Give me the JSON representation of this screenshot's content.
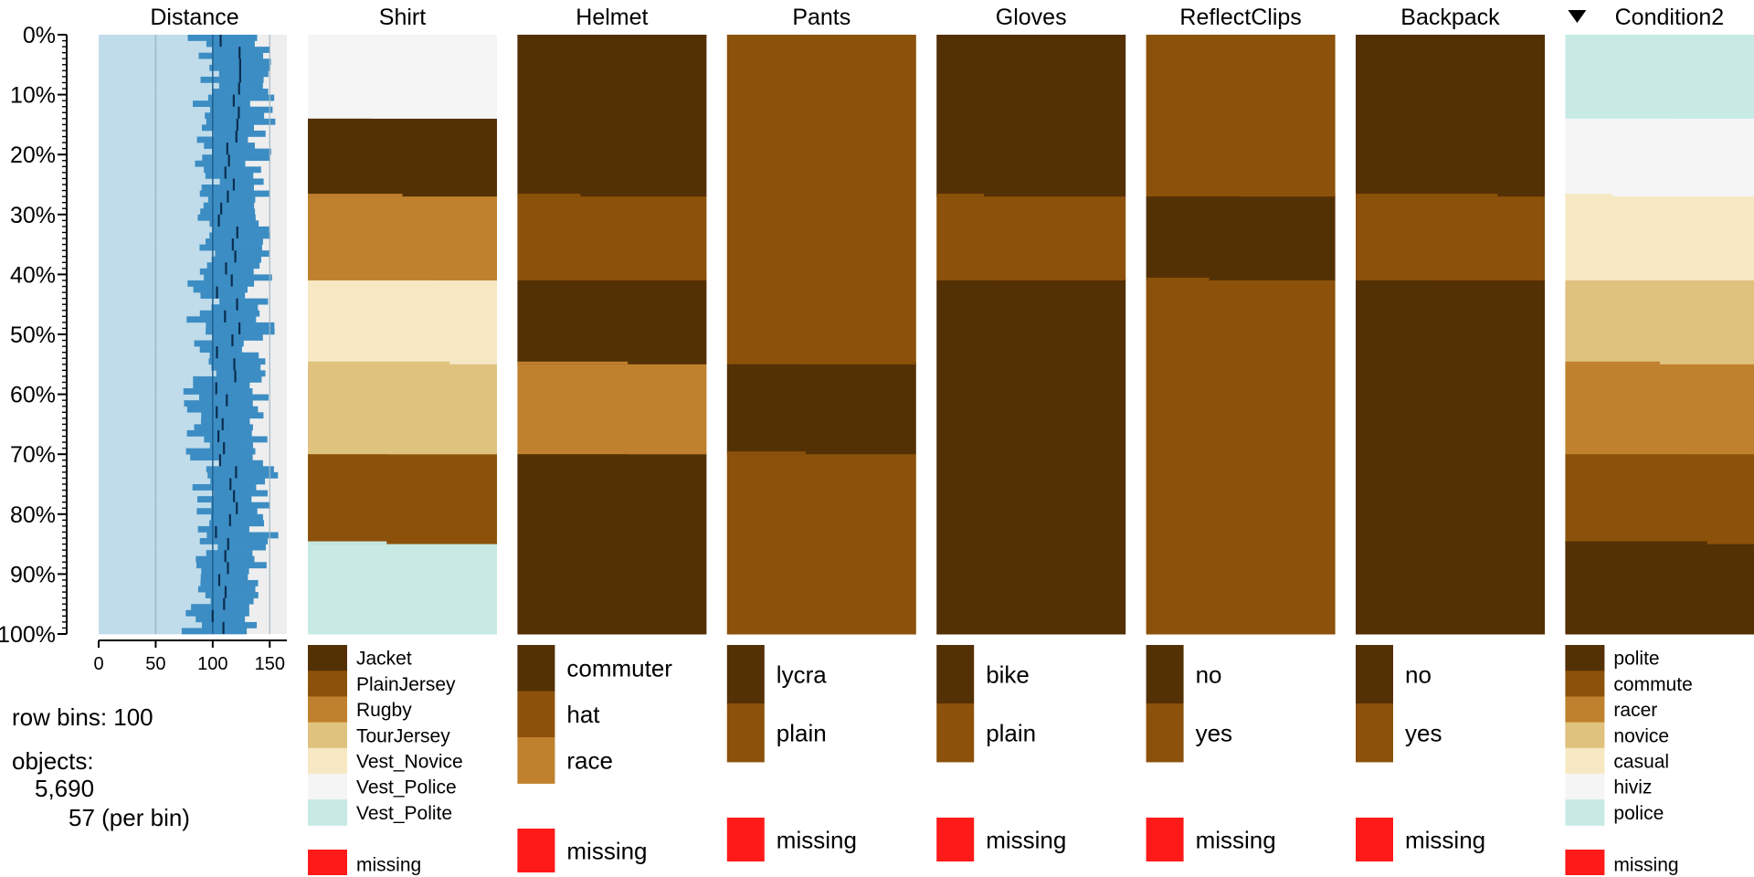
{
  "chart_data": {
    "type": "tableplot",
    "info": {
      "row_bins_label": "row bins: 100",
      "objects_label": "objects:",
      "objects_count": "5,690",
      "per_bin_label": "57 (per bin)"
    },
    "y_axis": {
      "ticks": [
        "0%",
        "10%",
        "20%",
        "30%",
        "40%",
        "50%",
        "60%",
        "70%",
        "80%",
        "90%",
        "100%"
      ],
      "range": [
        0,
        100
      ]
    },
    "sorted_column": "Condition2",
    "sort_marker": "descending",
    "numeric_column": {
      "name": "Distance",
      "xlim": [
        0,
        165
      ],
      "ticks": [
        "0",
        "50",
        "100",
        "150"
      ],
      "tick_values": [
        0,
        50,
        100,
        150
      ],
      "mean_approx": 118,
      "bin_mean_range_approx": [
        104,
        126
      ],
      "colors": {
        "background": "#c0dceb",
        "bar": "#3c8dc3",
        "line": "#1f5f8f",
        "mean_mark": "#0a2d50",
        "beyond": "#eeeeee"
      }
    },
    "categorical_columns": [
      {
        "name": "Shirt",
        "categories": [
          {
            "label": "Jacket",
            "color": "#543005"
          },
          {
            "label": "PlainJersey",
            "color": "#8c510a"
          },
          {
            "label": "Rugby",
            "color": "#bf812d"
          },
          {
            "label": "TourJersey",
            "color": "#dfc27d"
          },
          {
            "label": "Vest_Novice",
            "color": "#f6e8c3"
          },
          {
            "label": "Vest_Police",
            "color": "#f5f5f5"
          },
          {
            "label": "Vest_Polite",
            "color": "#c7eae5"
          }
        ],
        "segments": [
          {
            "category": "Vest_Police",
            "start": 0,
            "end": 14
          },
          {
            "category": "Jacket",
            "start": 14,
            "end": 27
          },
          {
            "category": "Rugby",
            "start": 27,
            "end": 41
          },
          {
            "category": "Vest_Novice",
            "start": 41,
            "end": 55
          },
          {
            "category": "TourJersey",
            "start": 55,
            "end": 70
          },
          {
            "category": "PlainJersey",
            "start": 70,
            "end": 85
          },
          {
            "category": "Vest_Polite",
            "start": 85,
            "end": 100
          }
        ],
        "missing_label": "missing"
      },
      {
        "name": "Helmet",
        "categories": [
          {
            "label": "commuter",
            "color": "#543005"
          },
          {
            "label": "hat",
            "color": "#8c510a"
          },
          {
            "label": "race",
            "color": "#bf812d"
          }
        ],
        "segments": [
          {
            "category": "commuter",
            "start": 0,
            "end": 27
          },
          {
            "category": "hat",
            "start": 27,
            "end": 41
          },
          {
            "category": "commuter",
            "start": 41,
            "end": 55
          },
          {
            "category": "race",
            "start": 55,
            "end": 70
          },
          {
            "category": "commuter",
            "start": 70,
            "end": 100
          }
        ],
        "missing_label": "missing"
      },
      {
        "name": "Pants",
        "categories": [
          {
            "label": "lycra",
            "color": "#543005"
          },
          {
            "label": "plain",
            "color": "#8c510a"
          }
        ],
        "segments": [
          {
            "category": "plain",
            "start": 0,
            "end": 55
          },
          {
            "category": "lycra",
            "start": 55,
            "end": 70
          },
          {
            "category": "plain",
            "start": 70,
            "end": 100
          }
        ],
        "missing_label": "missing"
      },
      {
        "name": "Gloves",
        "categories": [
          {
            "label": "bike",
            "color": "#543005"
          },
          {
            "label": "plain",
            "color": "#8c510a"
          }
        ],
        "segments": [
          {
            "category": "bike",
            "start": 0,
            "end": 27
          },
          {
            "category": "plain",
            "start": 27,
            "end": 41
          },
          {
            "category": "bike",
            "start": 41,
            "end": 100
          }
        ],
        "missing_label": "missing"
      },
      {
        "name": "ReflectClips",
        "categories": [
          {
            "label": "no",
            "color": "#543005"
          },
          {
            "label": "yes",
            "color": "#8c510a"
          }
        ],
        "segments": [
          {
            "category": "yes",
            "start": 0,
            "end": 27
          },
          {
            "category": "no",
            "start": 27,
            "end": 41
          },
          {
            "category": "yes",
            "start": 41,
            "end": 100
          }
        ],
        "missing_label": "missing"
      },
      {
        "name": "Backpack",
        "categories": [
          {
            "label": "no",
            "color": "#543005"
          },
          {
            "label": "yes",
            "color": "#8c510a"
          }
        ],
        "segments": [
          {
            "category": "no",
            "start": 0,
            "end": 27
          },
          {
            "category": "yes",
            "start": 27,
            "end": 41
          },
          {
            "category": "no",
            "start": 41,
            "end": 100
          }
        ],
        "missing_label": "missing"
      },
      {
        "name": "Condition2",
        "categories": [
          {
            "label": "polite",
            "color": "#543005"
          },
          {
            "label": "commute",
            "color": "#8c510a"
          },
          {
            "label": "racer",
            "color": "#bf812d"
          },
          {
            "label": "novice",
            "color": "#dfc27d"
          },
          {
            "label": "casual",
            "color": "#f6e8c3"
          },
          {
            "label": "hiviz",
            "color": "#f5f5f5"
          },
          {
            "label": "police",
            "color": "#c7eae5"
          }
        ],
        "segments": [
          {
            "category": "police",
            "start": 0,
            "end": 14
          },
          {
            "category": "hiviz",
            "start": 14,
            "end": 27
          },
          {
            "category": "casual",
            "start": 27,
            "end": 41
          },
          {
            "category": "novice",
            "start": 41,
            "end": 55
          },
          {
            "category": "racer",
            "start": 55,
            "end": 70
          },
          {
            "category": "commute",
            "start": 70,
            "end": 85
          },
          {
            "category": "polite",
            "start": 85,
            "end": 100
          }
        ],
        "missing_label": "missing"
      }
    ],
    "missing_color": "#ff1a1a"
  }
}
